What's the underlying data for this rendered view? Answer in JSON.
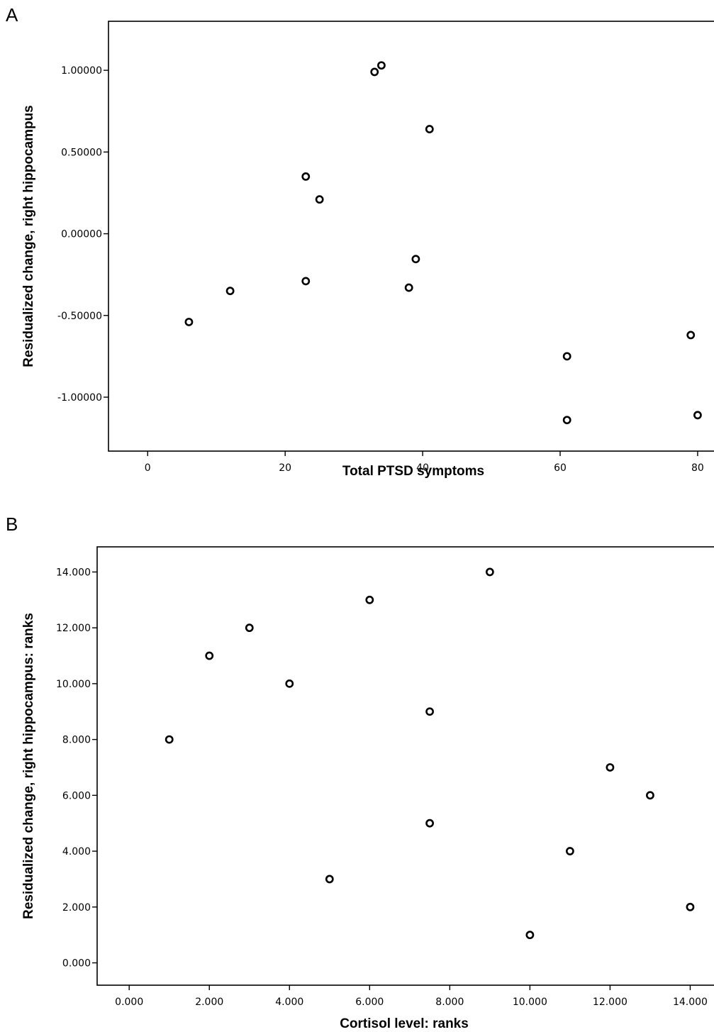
{
  "chart_data": [
    {
      "type": "scatter",
      "panel_label": "A",
      "xlabel": "Total PTSD symptoms",
      "ylabel": "Residualized change, right hippocampus",
      "xlim": [
        -5.7,
        83
      ],
      "ylim": [
        -1.33,
        1.3
      ],
      "x_ticks": [
        0,
        20,
        40,
        60,
        80
      ],
      "x_tick_labels": [
        "0",
        "20",
        "40",
        "60",
        "80"
      ],
      "y_ticks": [
        1.0,
        0.5,
        0.0,
        -0.5,
        -1.0
      ],
      "y_tick_labels": [
        "1.00000",
        "0.50000",
        "0.00000",
        "-0.50000",
        "-1.00000"
      ],
      "grid": false,
      "points": [
        {
          "x": 6,
          "y": -0.54
        },
        {
          "x": 12,
          "y": -0.35
        },
        {
          "x": 23,
          "y": 0.35
        },
        {
          "x": 23,
          "y": -0.29
        },
        {
          "x": 25,
          "y": 0.21
        },
        {
          "x": 33,
          "y": 0.99
        },
        {
          "x": 34,
          "y": 1.03
        },
        {
          "x": 38,
          "y": -0.33
        },
        {
          "x": 39,
          "y": -0.155
        },
        {
          "x": 41,
          "y": 0.64
        },
        {
          "x": 61,
          "y": -0.75
        },
        {
          "x": 61,
          "y": -1.14
        },
        {
          "x": 79,
          "y": -0.62
        },
        {
          "x": 80,
          "y": -1.11
        }
      ]
    },
    {
      "type": "scatter",
      "panel_label": "B",
      "xlabel": "Cortisol level: ranks",
      "ylabel": "Residualized change, right hippocampus: ranks",
      "xlim": [
        -0.8,
        14.7
      ],
      "ylim": [
        -0.8,
        14.9
      ],
      "x_ticks": [
        0,
        2,
        4,
        6,
        8,
        10,
        12,
        14
      ],
      "x_tick_labels": [
        "0.000",
        "2.000",
        "4.000",
        "6.000",
        "8.000",
        "10.000",
        "12.000",
        "14.000"
      ],
      "y_ticks": [
        14,
        12,
        10,
        8,
        6,
        4,
        2,
        0
      ],
      "y_tick_labels": [
        "14.000",
        "12.000",
        "10.000",
        "8.000",
        "6.000",
        "4.000",
        "2.000",
        "0.000"
      ],
      "grid": false,
      "points": [
        {
          "x": 1,
          "y": 8
        },
        {
          "x": 2,
          "y": 11
        },
        {
          "x": 3,
          "y": 12
        },
        {
          "x": 4,
          "y": 10
        },
        {
          "x": 5,
          "y": 3
        },
        {
          "x": 6,
          "y": 13
        },
        {
          "x": 7.5,
          "y": 9
        },
        {
          "x": 7.5,
          "y": 5
        },
        {
          "x": 9,
          "y": 14
        },
        {
          "x": 10,
          "y": 1
        },
        {
          "x": 11,
          "y": 4
        },
        {
          "x": 12,
          "y": 7
        },
        {
          "x": 13,
          "y": 6
        },
        {
          "x": 14,
          "y": 2
        }
      ]
    }
  ]
}
